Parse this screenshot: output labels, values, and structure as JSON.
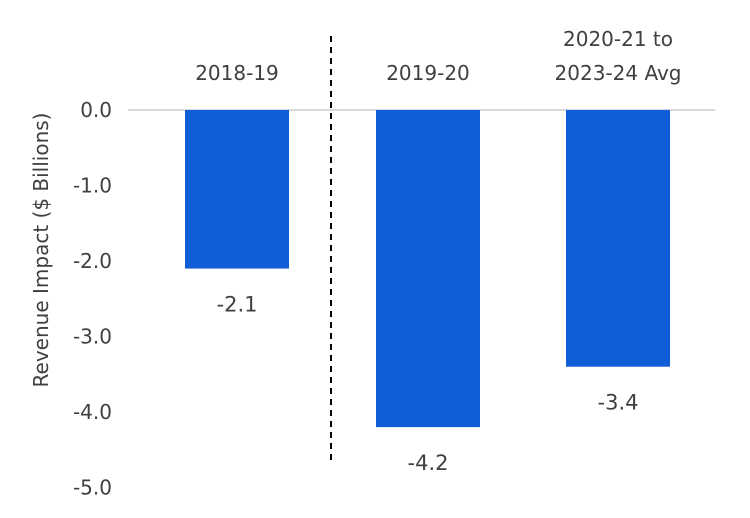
{
  "chart_data": {
    "type": "bar",
    "categories": [
      "2018-19",
      "2019-20",
      "2020-21 to 2023-24 Avg"
    ],
    "category_label_lines": [
      [
        "2018-19"
      ],
      [
        "2019-20"
      ],
      [
        "2020-21 to",
        "2023-24 Avg"
      ]
    ],
    "values": [
      -2.1,
      -4.2,
      -3.4
    ],
    "data_labels": [
      "-2.1",
      "-4.2",
      "-3.4"
    ],
    "ylabel": "Revenue Impact ($ Billions)",
    "ylim": [
      -5.0,
      0.0
    ],
    "yticks": [
      0.0,
      -1.0,
      -2.0,
      -3.0,
      -4.0,
      -5.0
    ],
    "ytick_labels": [
      "0.0",
      "-1.0",
      "-2.0",
      "-3.0",
      "-4.0",
      "-5.0"
    ],
    "grid": false,
    "legend": "none",
    "bar_color": "#0f5ed7",
    "zero_line_color": "#d9d9d9",
    "divider": "dashed vertical line between 2018-19 and 2019-20"
  }
}
